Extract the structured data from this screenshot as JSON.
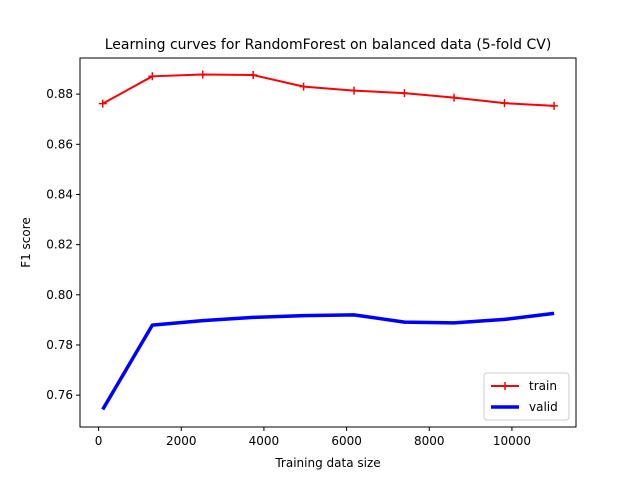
{
  "chart_data": {
    "type": "line",
    "title": "Learning curves for RandomForest on balanced data (5-fold CV)",
    "xlabel": "Training data size",
    "ylabel": "F1 score",
    "xlim": [
      -450,
      11550
    ],
    "ylim": [
      0.7473,
      0.8944
    ],
    "xticks": [
      0,
      2000,
      4000,
      6000,
      8000,
      10000
    ],
    "xtick_labels": [
      "0",
      "2000",
      "4000",
      "6000",
      "8000",
      "10000"
    ],
    "yticks": [
      0.76,
      0.78,
      0.8,
      0.82,
      0.84,
      0.86,
      0.88
    ],
    "ytick_labels": [
      "0.76",
      "0.78",
      "0.80",
      "0.82",
      "0.84",
      "0.86",
      "0.88"
    ],
    "grid": false,
    "legend": {
      "position": "lower-right",
      "entries": [
        "train",
        "valid"
      ]
    },
    "x": [
      100,
      1300,
      2520,
      3740,
      4960,
      6180,
      7400,
      8600,
      9820,
      11020
    ],
    "series": [
      {
        "name": "train",
        "color": "#ff0000",
        "marker": "plus",
        "values": [
          0.8762,
          0.8871,
          0.8878,
          0.8876,
          0.883,
          0.8814,
          0.8804,
          0.8786,
          0.8764,
          0.8753
        ]
      },
      {
        "name": "valid",
        "color": "#0000ff",
        "marker": "none",
        "values": [
          0.7543,
          0.7879,
          0.7897,
          0.791,
          0.7917,
          0.792,
          0.7891,
          0.7888,
          0.7902,
          0.7926
        ]
      }
    ]
  }
}
